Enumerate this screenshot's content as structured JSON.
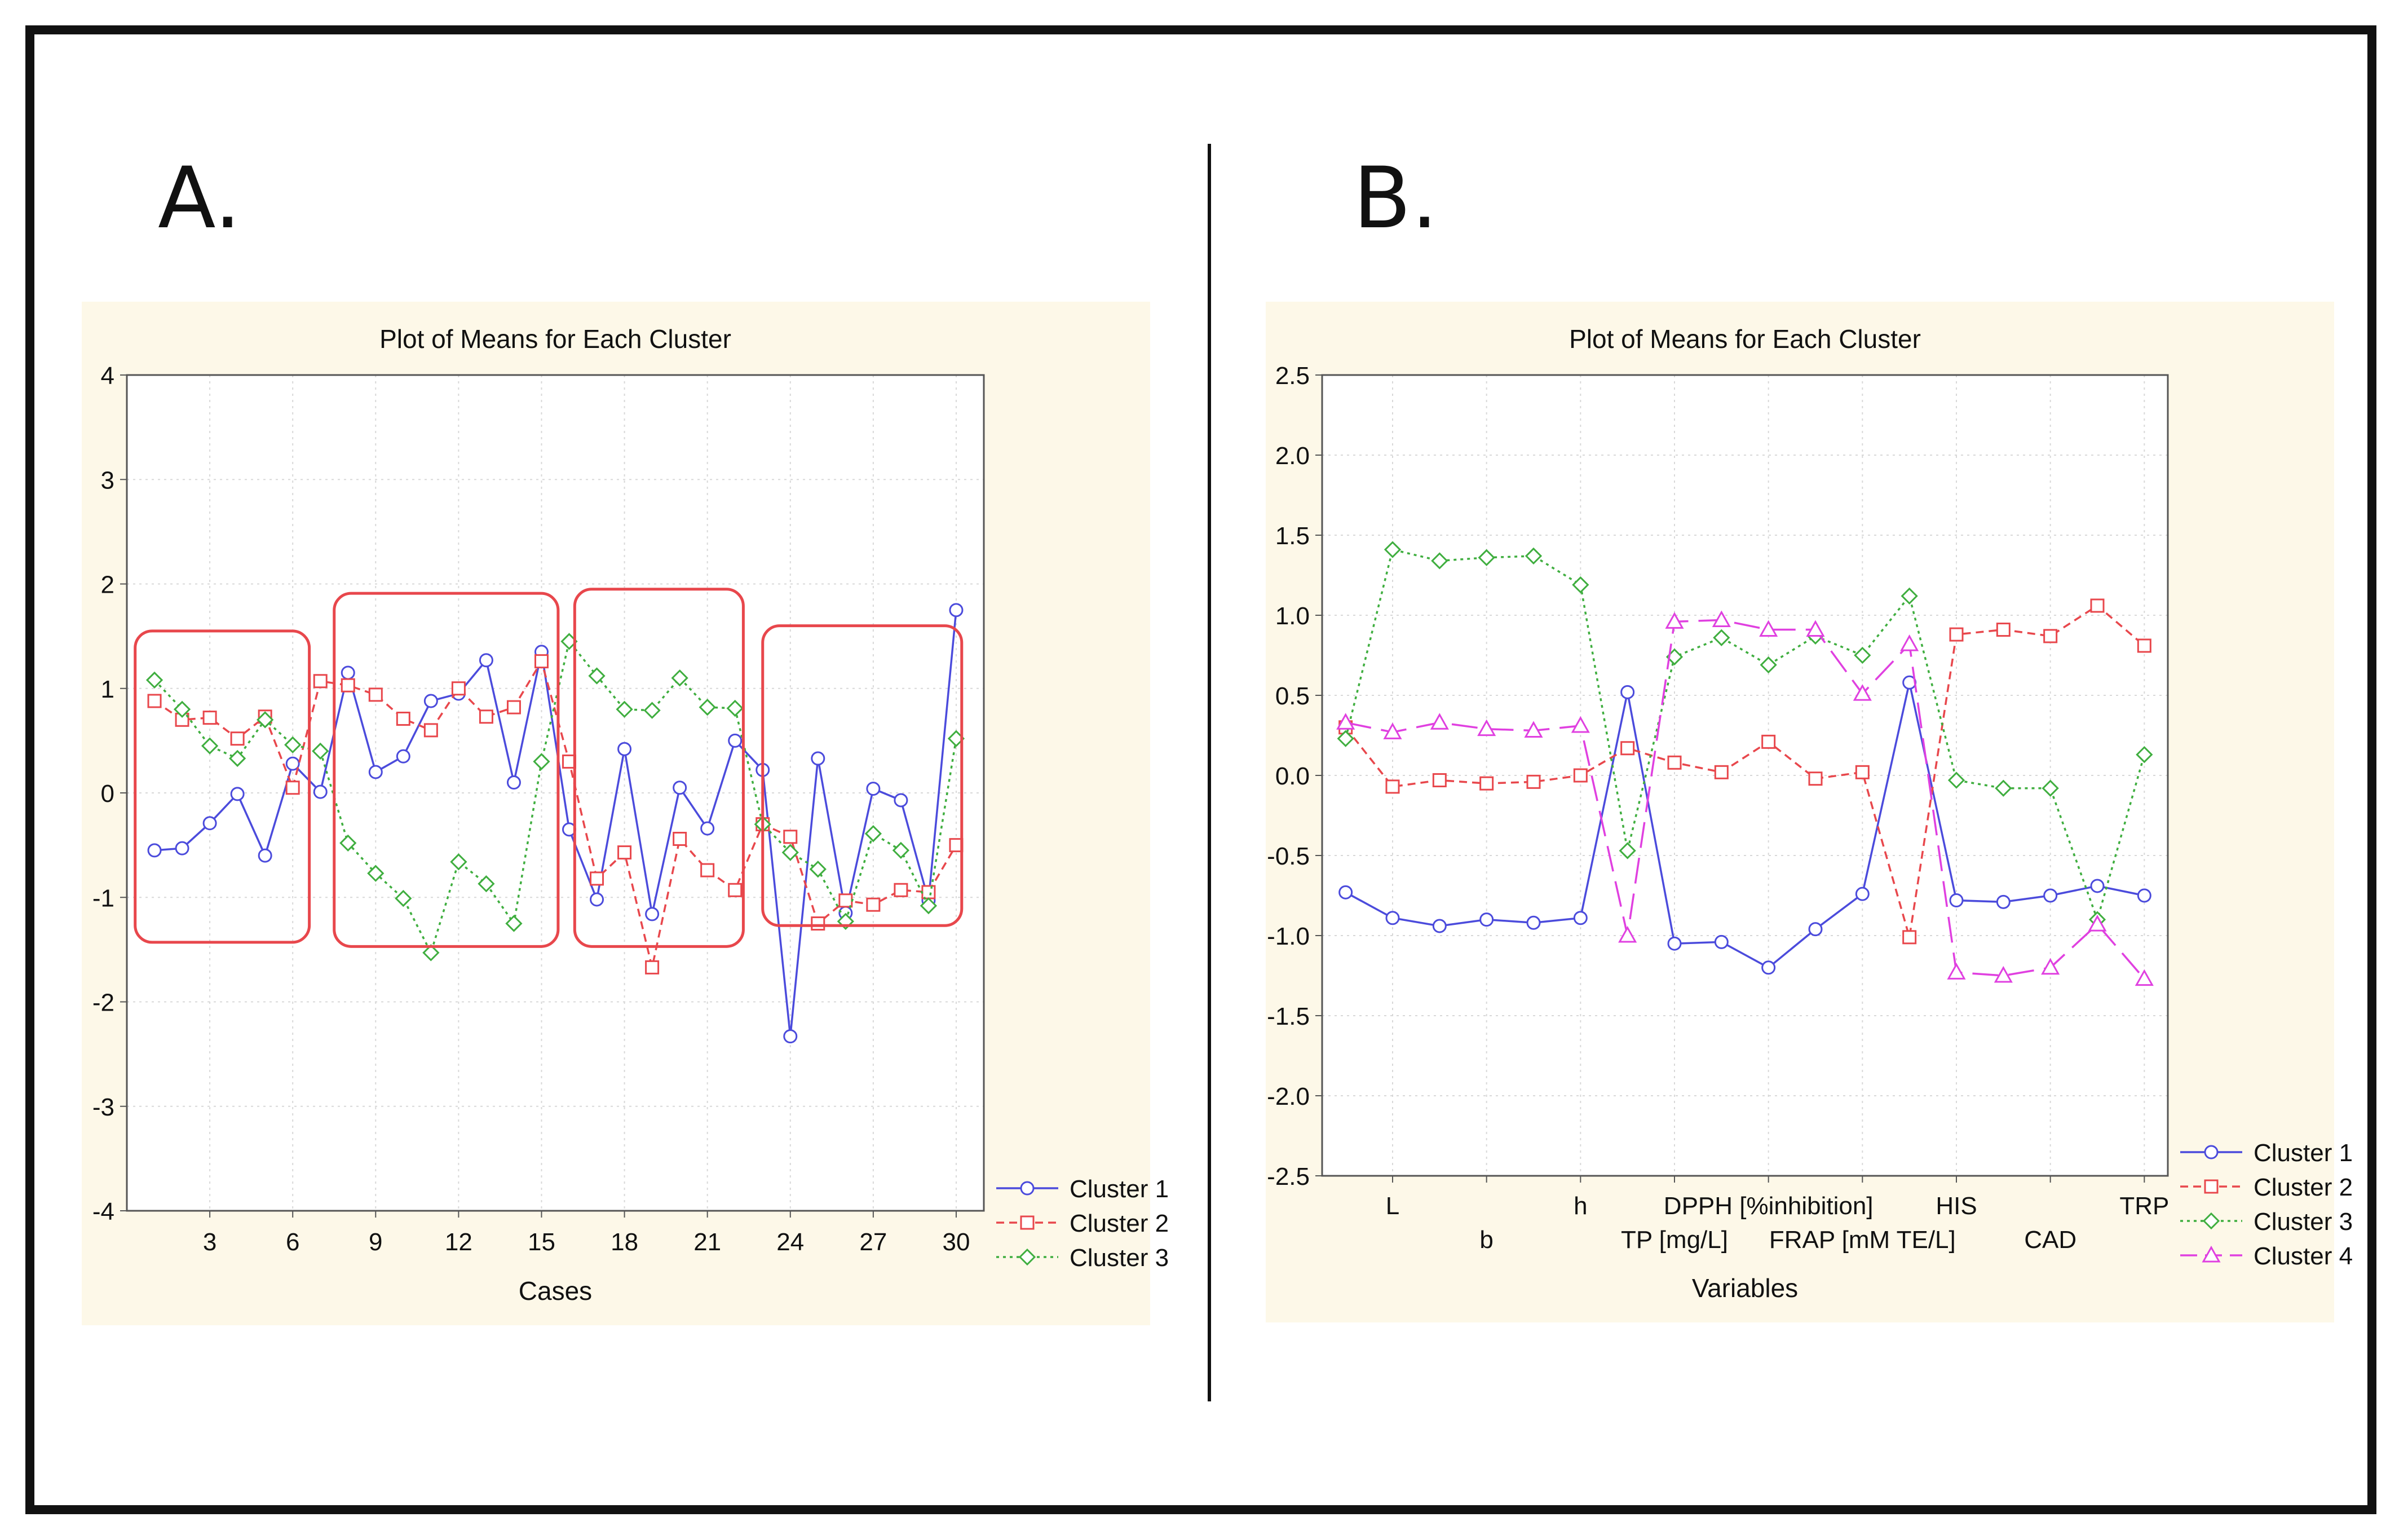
{
  "panels": {
    "a": {
      "letter": "A."
    },
    "b": {
      "letter": "B."
    }
  },
  "colors": {
    "panel_bg": "#fdf8e8",
    "highlight_box": "#e8474c",
    "cluster1": "#4b4bdc",
    "cluster2": "#e8474c",
    "cluster3": "#3fae3f",
    "cluster4": "#e040e0"
  },
  "chart_data": [
    {
      "type": "line",
      "title": "Plot of Means for Each Cluster",
      "xlabel": "Cases",
      "ylabel": "",
      "xlim": [
        0,
        31
      ],
      "ylim": [
        -4,
        4
      ],
      "x": [
        1,
        2,
        3,
        4,
        5,
        6,
        7,
        8,
        9,
        10,
        11,
        12,
        13,
        14,
        15,
        16,
        17,
        18,
        19,
        20,
        21,
        22,
        23,
        24,
        25,
        26,
        27,
        28,
        29,
        30
      ],
      "x_ticks": [
        3,
        6,
        9,
        12,
        15,
        18,
        21,
        24,
        27,
        30
      ],
      "y_ticks": [
        -4,
        -3,
        -2,
        -1,
        0,
        1,
        2,
        3,
        4
      ],
      "grid": true,
      "legend_position": "bottom-right",
      "series": [
        {
          "name": "Cluster  1",
          "values": [
            -0.55,
            -0.53,
            -0.29,
            -0.01,
            -0.6,
            0.28,
            0.01,
            1.15,
            0.2,
            0.35,
            0.88,
            0.95,
            1.27,
            0.1,
            1.35,
            -0.35,
            -1.02,
            0.42,
            -1.16,
            0.05,
            -0.34,
            0.5,
            0.22,
            -2.33,
            0.33,
            -1.15,
            0.04,
            -0.07,
            -1.03,
            1.75
          ]
        },
        {
          "name": "Cluster  2",
          "values": [
            0.88,
            0.7,
            0.72,
            0.52,
            0.73,
            0.05,
            1.07,
            1.03,
            0.94,
            0.71,
            0.6,
            1.0,
            0.73,
            0.82,
            1.26,
            0.3,
            -0.82,
            -0.57,
            -1.67,
            -0.44,
            -0.74,
            -0.93,
            -0.3,
            -0.42,
            -1.25,
            -1.03,
            -1.07,
            -0.93,
            -0.95,
            -0.5
          ]
        },
        {
          "name": "Cluster  3",
          "values": [
            1.08,
            0.8,
            0.45,
            0.33,
            0.7,
            0.46,
            0.4,
            -0.48,
            -0.77,
            -1.01,
            -1.53,
            -0.66,
            -0.87,
            -1.25,
            0.3,
            1.45,
            1.12,
            0.8,
            0.79,
            1.1,
            0.82,
            0.81,
            -0.3,
            -0.57,
            -0.73,
            -1.23,
            -0.39,
            -0.55,
            -1.08,
            0.52
          ]
        }
      ],
      "highlight_boxes": [
        {
          "x_range": [
            0.3,
            6.6
          ],
          "y_range": [
            -1.43,
            1.55
          ]
        },
        {
          "x_range": [
            7.5,
            15.6
          ],
          "y_range": [
            -1.47,
            1.91
          ]
        },
        {
          "x_range": [
            16.2,
            22.3
          ],
          "y_range": [
            -1.47,
            1.95
          ]
        },
        {
          "x_range": [
            23.0,
            30.2
          ],
          "y_range": [
            -1.27,
            1.6
          ]
        }
      ]
    },
    {
      "type": "line",
      "title": "Plot of Means for Each Cluster",
      "xlabel": "Variables",
      "ylabel": "",
      "xlim": [
        0.5,
        18.5
      ],
      "ylim": [
        -2.5,
        2.5
      ],
      "x": [
        1,
        2,
        3,
        4,
        5,
        6,
        7,
        8,
        9,
        10,
        11,
        12,
        13,
        14,
        15,
        16,
        17,
        18
      ],
      "y_ticks": [
        "-2.5",
        "-2.0",
        "-1.5",
        "-1.0",
        "-0.5",
        "0.0",
        "0.5",
        "1.0",
        "1.5",
        "2.0",
        "2.5"
      ],
      "x_tick_labels": [
        {
          "x": 2,
          "row": 1,
          "label": "L"
        },
        {
          "x": 4,
          "row": 2,
          "label": "b"
        },
        {
          "x": 6,
          "row": 1,
          "label": "h"
        },
        {
          "x": 8,
          "row": 2,
          "label": "TP [mg/L]"
        },
        {
          "x": 10,
          "row": 1,
          "label": "DPPH [%inhibition]"
        },
        {
          "x": 12,
          "row": 2,
          "label": "FRAP [mM TE/L]"
        },
        {
          "x": 14,
          "row": 1,
          "label": "HIS"
        },
        {
          "x": 16,
          "row": 2,
          "label": "CAD"
        },
        {
          "x": 18,
          "row": 1,
          "label": "TRP"
        }
      ],
      "grid": true,
      "legend_position": "bottom-right",
      "series": [
        {
          "name": "Cluster  1",
          "values": [
            -0.73,
            -0.89,
            -0.94,
            -0.9,
            -0.92,
            -0.89,
            0.52,
            -1.05,
            -1.04,
            -1.2,
            -0.96,
            -0.74,
            0.58,
            -0.78,
            -0.79,
            -0.75,
            -0.69,
            -0.75
          ]
        },
        {
          "name": "Cluster  2",
          "values": [
            0.3,
            -0.07,
            -0.03,
            -0.05,
            -0.04,
            0.0,
            0.17,
            0.08,
            0.02,
            0.21,
            -0.02,
            0.02,
            -1.01,
            0.88,
            0.91,
            0.87,
            1.06,
            0.81
          ]
        },
        {
          "name": "Cluster  3",
          "values": [
            0.23,
            1.41,
            1.34,
            1.36,
            1.37,
            1.19,
            -0.47,
            0.74,
            0.86,
            0.69,
            0.87,
            0.75,
            1.12,
            -0.03,
            -0.08,
            -0.08,
            -0.9,
            0.13
          ]
        },
        {
          "name": "Cluster  4",
          "values": [
            0.33,
            0.27,
            0.33,
            0.29,
            0.28,
            0.31,
            -1.0,
            0.96,
            0.97,
            0.91,
            0.91,
            0.51,
            0.82,
            -1.23,
            -1.25,
            -1.2,
            -0.93,
            -1.27
          ]
        }
      ]
    }
  ]
}
